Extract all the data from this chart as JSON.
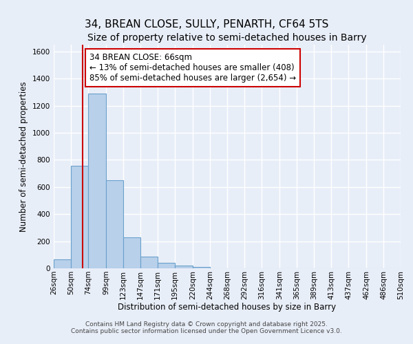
{
  "title": "34, BREAN CLOSE, SULLY, PENARTH, CF64 5TS",
  "subtitle": "Size of property relative to semi-detached houses in Barry",
  "xlabel": "Distribution of semi-detached houses by size in Barry",
  "ylabel": "Number of semi-detached properties",
  "bar_color": "#b8d0ea",
  "bar_edge_color": "#6aa0cc",
  "background_color": "#e8eef8",
  "grid_color": "#ffffff",
  "annotation_line1": "34 BREAN CLOSE: 66sqm",
  "annotation_line2": "← 13% of semi-detached houses are smaller (408)",
  "annotation_line3": "85% of semi-detached houses are larger (2,654) →",
  "property_line_x": 66,
  "property_line_color": "#cc0000",
  "bin_edges": [
    26,
    50,
    74,
    99,
    123,
    147,
    171,
    195,
    220,
    244,
    268,
    292,
    316,
    341,
    365,
    389,
    413,
    437,
    462,
    486,
    510
  ],
  "bar_heights": [
    65,
    755,
    1290,
    651,
    228,
    85,
    40,
    20,
    10,
    0,
    0,
    0,
    0,
    0,
    0,
    0,
    0,
    0,
    0,
    0
  ],
  "ylim": [
    0,
    1650
  ],
  "annotation_box_color": "#ffffff",
  "annotation_box_edge_color": "#cc0000",
  "footer_text1": "Contains HM Land Registry data © Crown copyright and database right 2025.",
  "footer_text2": "Contains public sector information licensed under the Open Government Licence v3.0.",
  "title_fontsize": 11,
  "subtitle_fontsize": 10,
  "label_fontsize": 8.5,
  "tick_fontsize": 7.5,
  "annotation_fontsize": 8.5,
  "footer_fontsize": 6.5
}
